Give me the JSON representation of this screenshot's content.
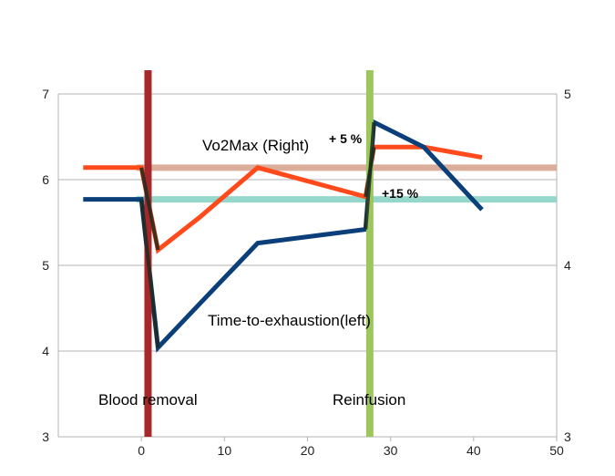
{
  "chart_data": {
    "type": "line",
    "x_axis": {
      "range": [
        -10,
        50
      ],
      "ticks": [
        0,
        10,
        20,
        30,
        40,
        50
      ]
    },
    "y_left": {
      "range": [
        3,
        7
      ],
      "ticks": [
        3,
        4,
        5,
        6,
        7
      ]
    },
    "y_right": {
      "range": [
        3,
        5
      ],
      "ticks": [
        3,
        4,
        5
      ]
    },
    "grid": "horizontal",
    "series": [
      {
        "name": "Time-to-exhaustion(left)",
        "axis": "left",
        "color": "#0b3f7a",
        "points": [
          [
            -7,
            5.77
          ],
          [
            0,
            5.77
          ],
          [
            2,
            4.04
          ],
          [
            7,
            4.55
          ],
          [
            14,
            5.26
          ],
          [
            27,
            5.42
          ],
          [
            28,
            6.67
          ],
          [
            34,
            6.38
          ],
          [
            41,
            5.65
          ]
        ]
      },
      {
        "name": "Vo2Max (Right)",
        "axis": "right",
        "color": "#ff4a1c",
        "points": [
          [
            -7,
            4.57
          ],
          [
            0,
            4.57
          ],
          [
            2,
            4.09
          ],
          [
            7,
            4.28
          ],
          [
            14,
            4.57
          ],
          [
            27,
            4.4
          ],
          [
            28,
            4.69
          ],
          [
            34,
            4.69
          ],
          [
            41,
            4.63
          ]
        ]
      }
    ],
    "reference_lines": [
      {
        "axis": "left",
        "value": 5.77,
        "color": "#8fd5c8"
      },
      {
        "axis": "right",
        "value": 4.57,
        "color": "#d8aa96"
      }
    ],
    "vertical_bands": [
      {
        "x": 0.8,
        "color": "#a5282a"
      },
      {
        "x": 27.5,
        "color": "#9dc65f"
      }
    ],
    "annotations": {
      "vo2max": "Vo2Max (Right)",
      "vo2max_change": "+ 5 %",
      "tte_change": "+15 %",
      "tte": "Time-to-exhaustion(left)",
      "blood_removal": "Blood removal",
      "reinfusion": "Reinfusion"
    }
  }
}
